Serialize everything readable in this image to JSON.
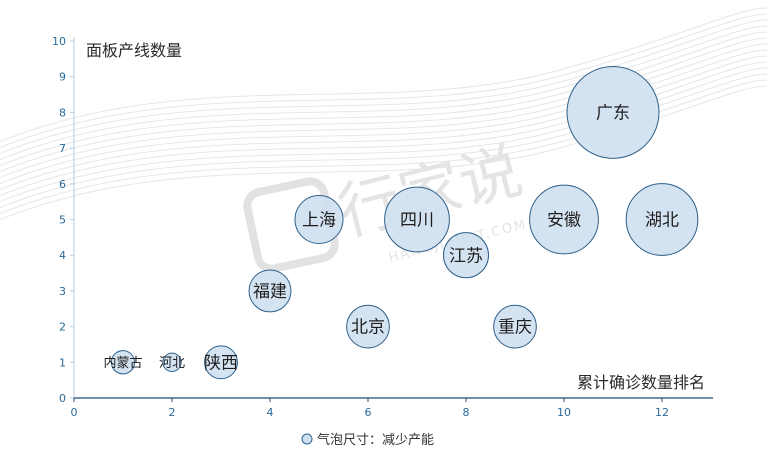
{
  "chart_data": {
    "type": "scatter",
    "subtype": "bubble",
    "ylabel": "面板产线数量",
    "xlabel": "累计确诊数量排名",
    "legend": "气泡尺寸：减少产能",
    "legend_position": "bottom",
    "xlim": [
      0,
      13
    ],
    "ylim": [
      0,
      10
    ],
    "x_ticks": [
      "0",
      "2",
      "4",
      "6",
      "8",
      "10",
      "12"
    ],
    "y_ticks": [
      "0",
      "1",
      "2",
      "3",
      "4",
      "5",
      "6",
      "7",
      "8",
      "9",
      "10"
    ],
    "grid": false,
    "points": [
      {
        "label": "内蒙古",
        "x": 1,
        "y": 1,
        "size": 0.8
      },
      {
        "label": "河北",
        "x": 2,
        "y": 1,
        "size": 0.5
      },
      {
        "label": "陕西",
        "x": 3,
        "y": 1,
        "size": 1.6
      },
      {
        "label": "福建",
        "x": 4,
        "y": 3,
        "size": 2.6
      },
      {
        "label": "上海",
        "x": 5,
        "y": 5,
        "size": 3.4
      },
      {
        "label": "北京",
        "x": 6,
        "y": 2,
        "size": 2.7
      },
      {
        "label": "四川",
        "x": 7,
        "y": 5,
        "size": 6.2
      },
      {
        "label": "江苏",
        "x": 8,
        "y": 4,
        "size": 3.0
      },
      {
        "label": "重庆",
        "x": 9,
        "y": 2,
        "size": 2.7
      },
      {
        "label": "安徽",
        "x": 10,
        "y": 5,
        "size": 7.0
      },
      {
        "label": "广东",
        "x": 11,
        "y": 8,
        "size": 12.5
      },
      {
        "label": "湖北",
        "x": 12,
        "y": 5,
        "size": 7.6
      }
    ],
    "bubble_fill": "#cfe0f0",
    "bubble_stroke": "#2d5f8a"
  },
  "watermark": {
    "text": "行家说",
    "subtext": "HANGJIANET.COM"
  }
}
